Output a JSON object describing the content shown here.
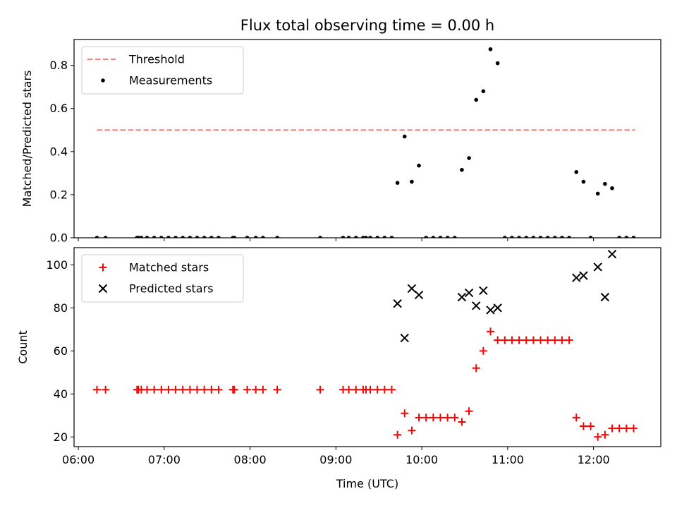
{
  "chart_data": [
    {
      "type": "scatter",
      "title": "Flux total observing time = 0.00 h",
      "xlabel": "",
      "ylabel": "Matched/Predicted stars",
      "xlim": [
        "05:57",
        "12:47"
      ],
      "ylim": [
        0,
        0.92
      ],
      "yticks": [
        0.0,
        0.2,
        0.4,
        0.6,
        0.8
      ],
      "ytick_labels": [
        "0.0",
        "0.2",
        "0.4",
        "0.6",
        "0.8"
      ],
      "legend": {
        "position": "top-left",
        "entries": [
          "Threshold",
          "Measurements"
        ]
      },
      "colors": {
        "threshold": "#ff7f7f",
        "measurements": "#000000"
      },
      "series": [
        {
          "name": "Threshold",
          "kind": "dashed-line",
          "points": [
            {
              "x": "06:13",
              "y": 0.5
            },
            {
              "x": "12:29",
              "y": 0.5
            }
          ]
        },
        {
          "name": "Measurements",
          "kind": "points",
          "points": [
            {
              "x": "06:13",
              "y": 0
            },
            {
              "x": "06:19",
              "y": 0
            },
            {
              "x": "06:41",
              "y": 0
            },
            {
              "x": "06:42",
              "y": 0
            },
            {
              "x": "06:44",
              "y": 0
            },
            {
              "x": "06:48",
              "y": 0
            },
            {
              "x": "06:53",
              "y": 0
            },
            {
              "x": "06:58",
              "y": 0
            },
            {
              "x": "07:03",
              "y": 0
            },
            {
              "x": "07:08",
              "y": 0
            },
            {
              "x": "07:13",
              "y": 0
            },
            {
              "x": "07:18",
              "y": 0
            },
            {
              "x": "07:23",
              "y": 0
            },
            {
              "x": "07:28",
              "y": 0
            },
            {
              "x": "07:33",
              "y": 0
            },
            {
              "x": "07:38",
              "y": 0
            },
            {
              "x": "07:48",
              "y": 0
            },
            {
              "x": "07:49",
              "y": 0
            },
            {
              "x": "07:58",
              "y": 0
            },
            {
              "x": "08:04",
              "y": 0
            },
            {
              "x": "08:09",
              "y": 0
            },
            {
              "x": "08:19",
              "y": 0
            },
            {
              "x": "08:49",
              "y": 0
            },
            {
              "x": "09:05",
              "y": 0
            },
            {
              "x": "09:09",
              "y": 0
            },
            {
              "x": "09:14",
              "y": 0
            },
            {
              "x": "09:19",
              "y": 0
            },
            {
              "x": "09:21",
              "y": 0
            },
            {
              "x": "09:24",
              "y": 0
            },
            {
              "x": "09:29",
              "y": 0
            },
            {
              "x": "09:34",
              "y": 0
            },
            {
              "x": "09:39",
              "y": 0
            },
            {
              "x": "09:43",
              "y": 0.255
            },
            {
              "x": "09:48",
              "y": 0.47
            },
            {
              "x": "09:53",
              "y": 0.26
            },
            {
              "x": "09:58",
              "y": 0.335
            },
            {
              "x": "10:03",
              "y": 0
            },
            {
              "x": "10:08",
              "y": 0
            },
            {
              "x": "10:13",
              "y": 0
            },
            {
              "x": "10:18",
              "y": 0
            },
            {
              "x": "10:23",
              "y": 0
            },
            {
              "x": "10:28",
              "y": 0.315
            },
            {
              "x": "10:33",
              "y": 0.37
            },
            {
              "x": "10:38",
              "y": 0.64
            },
            {
              "x": "10:43",
              "y": 0.68
            },
            {
              "x": "10:48",
              "y": 0.875
            },
            {
              "x": "10:53",
              "y": 0.81
            },
            {
              "x": "10:58",
              "y": 0
            },
            {
              "x": "11:03",
              "y": 0
            },
            {
              "x": "11:08",
              "y": 0
            },
            {
              "x": "11:13",
              "y": 0
            },
            {
              "x": "11:18",
              "y": 0
            },
            {
              "x": "11:23",
              "y": 0
            },
            {
              "x": "11:28",
              "y": 0
            },
            {
              "x": "11:33",
              "y": 0
            },
            {
              "x": "11:38",
              "y": 0
            },
            {
              "x": "11:43",
              "y": 0
            },
            {
              "x": "11:48",
              "y": 0.305
            },
            {
              "x": "11:53",
              "y": 0.26
            },
            {
              "x": "11:58",
              "y": 0
            },
            {
              "x": "12:03",
              "y": 0.205
            },
            {
              "x": "12:08",
              "y": 0.25
            },
            {
              "x": "12:13",
              "y": 0.23
            },
            {
              "x": "12:18",
              "y": 0
            },
            {
              "x": "12:23",
              "y": 0
            },
            {
              "x": "12:28",
              "y": 0
            }
          ]
        }
      ]
    },
    {
      "type": "scatter",
      "title": "",
      "xlabel": "Time (UTC)",
      "ylabel": "Count",
      "xlim": [
        "05:57",
        "12:47"
      ],
      "ylim": [
        15.5,
        108
      ],
      "yticks": [
        20,
        40,
        60,
        80,
        100
      ],
      "ytick_labels": [
        "20",
        "40",
        "60",
        "80",
        "100"
      ],
      "xticks": [
        "06:00",
        "07:00",
        "08:00",
        "09:00",
        "10:00",
        "11:00",
        "12:00"
      ],
      "xtick_labels": [
        "06:00",
        "07:00",
        "08:00",
        "09:00",
        "10:00",
        "11:00",
        "12:00"
      ],
      "legend": {
        "position": "top-left",
        "entries": [
          "Matched stars",
          "Predicted stars"
        ]
      },
      "colors": {
        "matched": "#ff0000",
        "predicted": "#000000"
      },
      "series": [
        {
          "name": "Matched stars",
          "marker": "plus",
          "points": [
            {
              "x": "06:13",
              "y": 42
            },
            {
              "x": "06:19",
              "y": 42
            },
            {
              "x": "06:41",
              "y": 42
            },
            {
              "x": "06:42",
              "y": 42
            },
            {
              "x": "06:44",
              "y": 42
            },
            {
              "x": "06:48",
              "y": 42
            },
            {
              "x": "06:53",
              "y": 42
            },
            {
              "x": "06:58",
              "y": 42
            },
            {
              "x": "07:03",
              "y": 42
            },
            {
              "x": "07:08",
              "y": 42
            },
            {
              "x": "07:13",
              "y": 42
            },
            {
              "x": "07:18",
              "y": 42
            },
            {
              "x": "07:23",
              "y": 42
            },
            {
              "x": "07:28",
              "y": 42
            },
            {
              "x": "07:33",
              "y": 42
            },
            {
              "x": "07:38",
              "y": 42
            },
            {
              "x": "07:48",
              "y": 42
            },
            {
              "x": "07:49",
              "y": 42
            },
            {
              "x": "07:58",
              "y": 42
            },
            {
              "x": "08:04",
              "y": 42
            },
            {
              "x": "08:09",
              "y": 42
            },
            {
              "x": "08:19",
              "y": 42
            },
            {
              "x": "08:49",
              "y": 42
            },
            {
              "x": "09:05",
              "y": 42
            },
            {
              "x": "09:09",
              "y": 42
            },
            {
              "x": "09:14",
              "y": 42
            },
            {
              "x": "09:19",
              "y": 42
            },
            {
              "x": "09:21",
              "y": 42
            },
            {
              "x": "09:24",
              "y": 42
            },
            {
              "x": "09:29",
              "y": 42
            },
            {
              "x": "09:34",
              "y": 42
            },
            {
              "x": "09:39",
              "y": 42
            },
            {
              "x": "09:43",
              "y": 21
            },
            {
              "x": "09:48",
              "y": 31
            },
            {
              "x": "09:53",
              "y": 23
            },
            {
              "x": "09:58",
              "y": 29
            },
            {
              "x": "10:03",
              "y": 29
            },
            {
              "x": "10:08",
              "y": 29
            },
            {
              "x": "10:13",
              "y": 29
            },
            {
              "x": "10:18",
              "y": 29
            },
            {
              "x": "10:23",
              "y": 29
            },
            {
              "x": "10:28",
              "y": 27
            },
            {
              "x": "10:33",
              "y": 32
            },
            {
              "x": "10:38",
              "y": 52
            },
            {
              "x": "10:43",
              "y": 60
            },
            {
              "x": "10:48",
              "y": 69
            },
            {
              "x": "10:53",
              "y": 65
            },
            {
              "x": "10:58",
              "y": 65
            },
            {
              "x": "11:03",
              "y": 65
            },
            {
              "x": "11:08",
              "y": 65
            },
            {
              "x": "11:13",
              "y": 65
            },
            {
              "x": "11:18",
              "y": 65
            },
            {
              "x": "11:23",
              "y": 65
            },
            {
              "x": "11:28",
              "y": 65
            },
            {
              "x": "11:33",
              "y": 65
            },
            {
              "x": "11:38",
              "y": 65
            },
            {
              "x": "11:43",
              "y": 65
            },
            {
              "x": "11:48",
              "y": 29
            },
            {
              "x": "11:53",
              "y": 25
            },
            {
              "x": "11:58",
              "y": 25
            },
            {
              "x": "12:03",
              "y": 20
            },
            {
              "x": "12:08",
              "y": 21
            },
            {
              "x": "12:13",
              "y": 24
            },
            {
              "x": "12:18",
              "y": 24
            },
            {
              "x": "12:23",
              "y": 24
            },
            {
              "x": "12:28",
              "y": 24
            }
          ]
        },
        {
          "name": "Predicted stars",
          "marker": "x",
          "points": [
            {
              "x": "09:43",
              "y": 82
            },
            {
              "x": "09:48",
              "y": 66
            },
            {
              "x": "09:53",
              "y": 89
            },
            {
              "x": "09:58",
              "y": 86
            },
            {
              "x": "10:28",
              "y": 85
            },
            {
              "x": "10:33",
              "y": 87
            },
            {
              "x": "10:38",
              "y": 81
            },
            {
              "x": "10:43",
              "y": 88
            },
            {
              "x": "10:48",
              "y": 79
            },
            {
              "x": "10:53",
              "y": 80
            },
            {
              "x": "11:48",
              "y": 94
            },
            {
              "x": "11:53",
              "y": 95
            },
            {
              "x": "12:03",
              "y": 99
            },
            {
              "x": "12:08",
              "y": 85
            },
            {
              "x": "12:13",
              "y": 105
            }
          ]
        }
      ]
    }
  ]
}
